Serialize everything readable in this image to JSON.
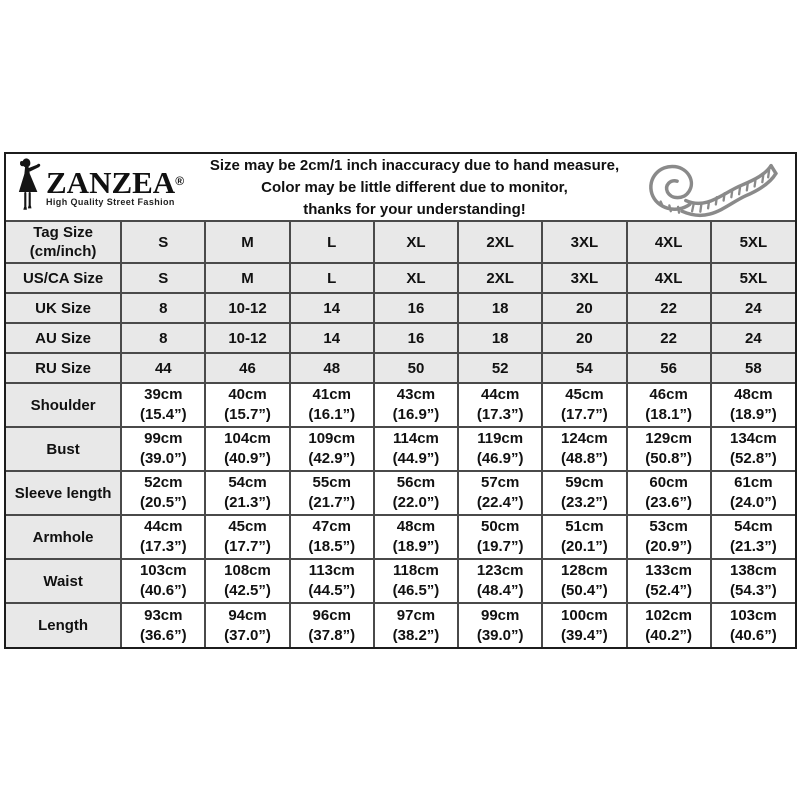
{
  "brand": {
    "name": "ZANZEA",
    "registered_mark": "®",
    "tagline": "High Quality Street Fashion"
  },
  "notice": {
    "line1": "Size may be 2cm/1 inch inaccuracy due to hand measure,",
    "line2": "Color may be little different due to monitor,",
    "line3": "thanks for your understanding!"
  },
  "icons": {
    "brand_figure": "woman-silhouette-icon",
    "tape_measure": "tape-measure-icon"
  },
  "colors": {
    "outer_border": "#1c1c1c",
    "grid_line": "#4a4a4a",
    "row_shade": "#e8e8e8",
    "text": "#111111",
    "tape_icon": "#8a8a8a"
  },
  "size_table": {
    "corner_line1": "Tag Size",
    "corner_line2": "(cm/inch)",
    "columns": [
      "S",
      "M",
      "L",
      "XL",
      "2XL",
      "3XL",
      "4XL",
      "5XL"
    ],
    "size_rows": [
      {
        "label": "US/CA Size",
        "values": [
          "S",
          "M",
          "L",
          "XL",
          "2XL",
          "3XL",
          "4XL",
          "5XL"
        ]
      },
      {
        "label": "UK Size",
        "values": [
          "8",
          "10-12",
          "14",
          "16",
          "18",
          "20",
          "22",
          "24"
        ]
      },
      {
        "label": "AU Size",
        "values": [
          "8",
          "10-12",
          "14",
          "16",
          "18",
          "20",
          "22",
          "24"
        ]
      },
      {
        "label": "RU Size",
        "values": [
          "44",
          "46",
          "48",
          "50",
          "52",
          "54",
          "56",
          "58"
        ]
      }
    ],
    "measure_rows": [
      {
        "label": "Shoulder",
        "cm": [
          "39cm",
          "40cm",
          "41cm",
          "43cm",
          "44cm",
          "45cm",
          "46cm",
          "48cm"
        ],
        "inch": [
          "(15.4”)",
          "(15.7”)",
          "(16.1”)",
          "(16.9”)",
          "(17.3”)",
          "(17.7”)",
          "(18.1”)",
          "(18.9”)"
        ]
      },
      {
        "label": "Bust",
        "cm": [
          "99cm",
          "104cm",
          "109cm",
          "114cm",
          "119cm",
          "124cm",
          "129cm",
          "134cm"
        ],
        "inch": [
          "(39.0”)",
          "(40.9”)",
          "(42.9”)",
          "(44.9”)",
          "(46.9”)",
          "(48.8”)",
          "(50.8”)",
          "(52.8”)"
        ]
      },
      {
        "label": "Sleeve length",
        "cm": [
          "52cm",
          "54cm",
          "55cm",
          "56cm",
          "57cm",
          "59cm",
          "60cm",
          "61cm"
        ],
        "inch": [
          "(20.5”)",
          "(21.3”)",
          "(21.7”)",
          "(22.0”)",
          "(22.4”)",
          "(23.2”)",
          "(23.6”)",
          "(24.0”)"
        ]
      },
      {
        "label": "Armhole",
        "cm": [
          "44cm",
          "45cm",
          "47cm",
          "48cm",
          "50cm",
          "51cm",
          "53cm",
          "54cm"
        ],
        "inch": [
          "(17.3”)",
          "(17.7”)",
          "(18.5”)",
          "(18.9”)",
          "(19.7”)",
          "(20.1”)",
          "(20.9”)",
          "(21.3”)"
        ]
      },
      {
        "label": "Waist",
        "cm": [
          "103cm",
          "108cm",
          "113cm",
          "118cm",
          "123cm",
          "128cm",
          "133cm",
          "138cm"
        ],
        "inch": [
          "(40.6”)",
          "(42.5”)",
          "(44.5”)",
          "(46.5”)",
          "(48.4”)",
          "(50.4”)",
          "(52.4”)",
          "(54.3”)"
        ]
      },
      {
        "label": "Length",
        "cm": [
          "93cm",
          "94cm",
          "96cm",
          "97cm",
          "99cm",
          "100cm",
          "102cm",
          "103cm"
        ],
        "inch": [
          "(36.6”)",
          "(37.0”)",
          "(37.8”)",
          "(38.2”)",
          "(39.0”)",
          "(39.4”)",
          "(40.2”)",
          "(40.6”)"
        ]
      }
    ]
  }
}
